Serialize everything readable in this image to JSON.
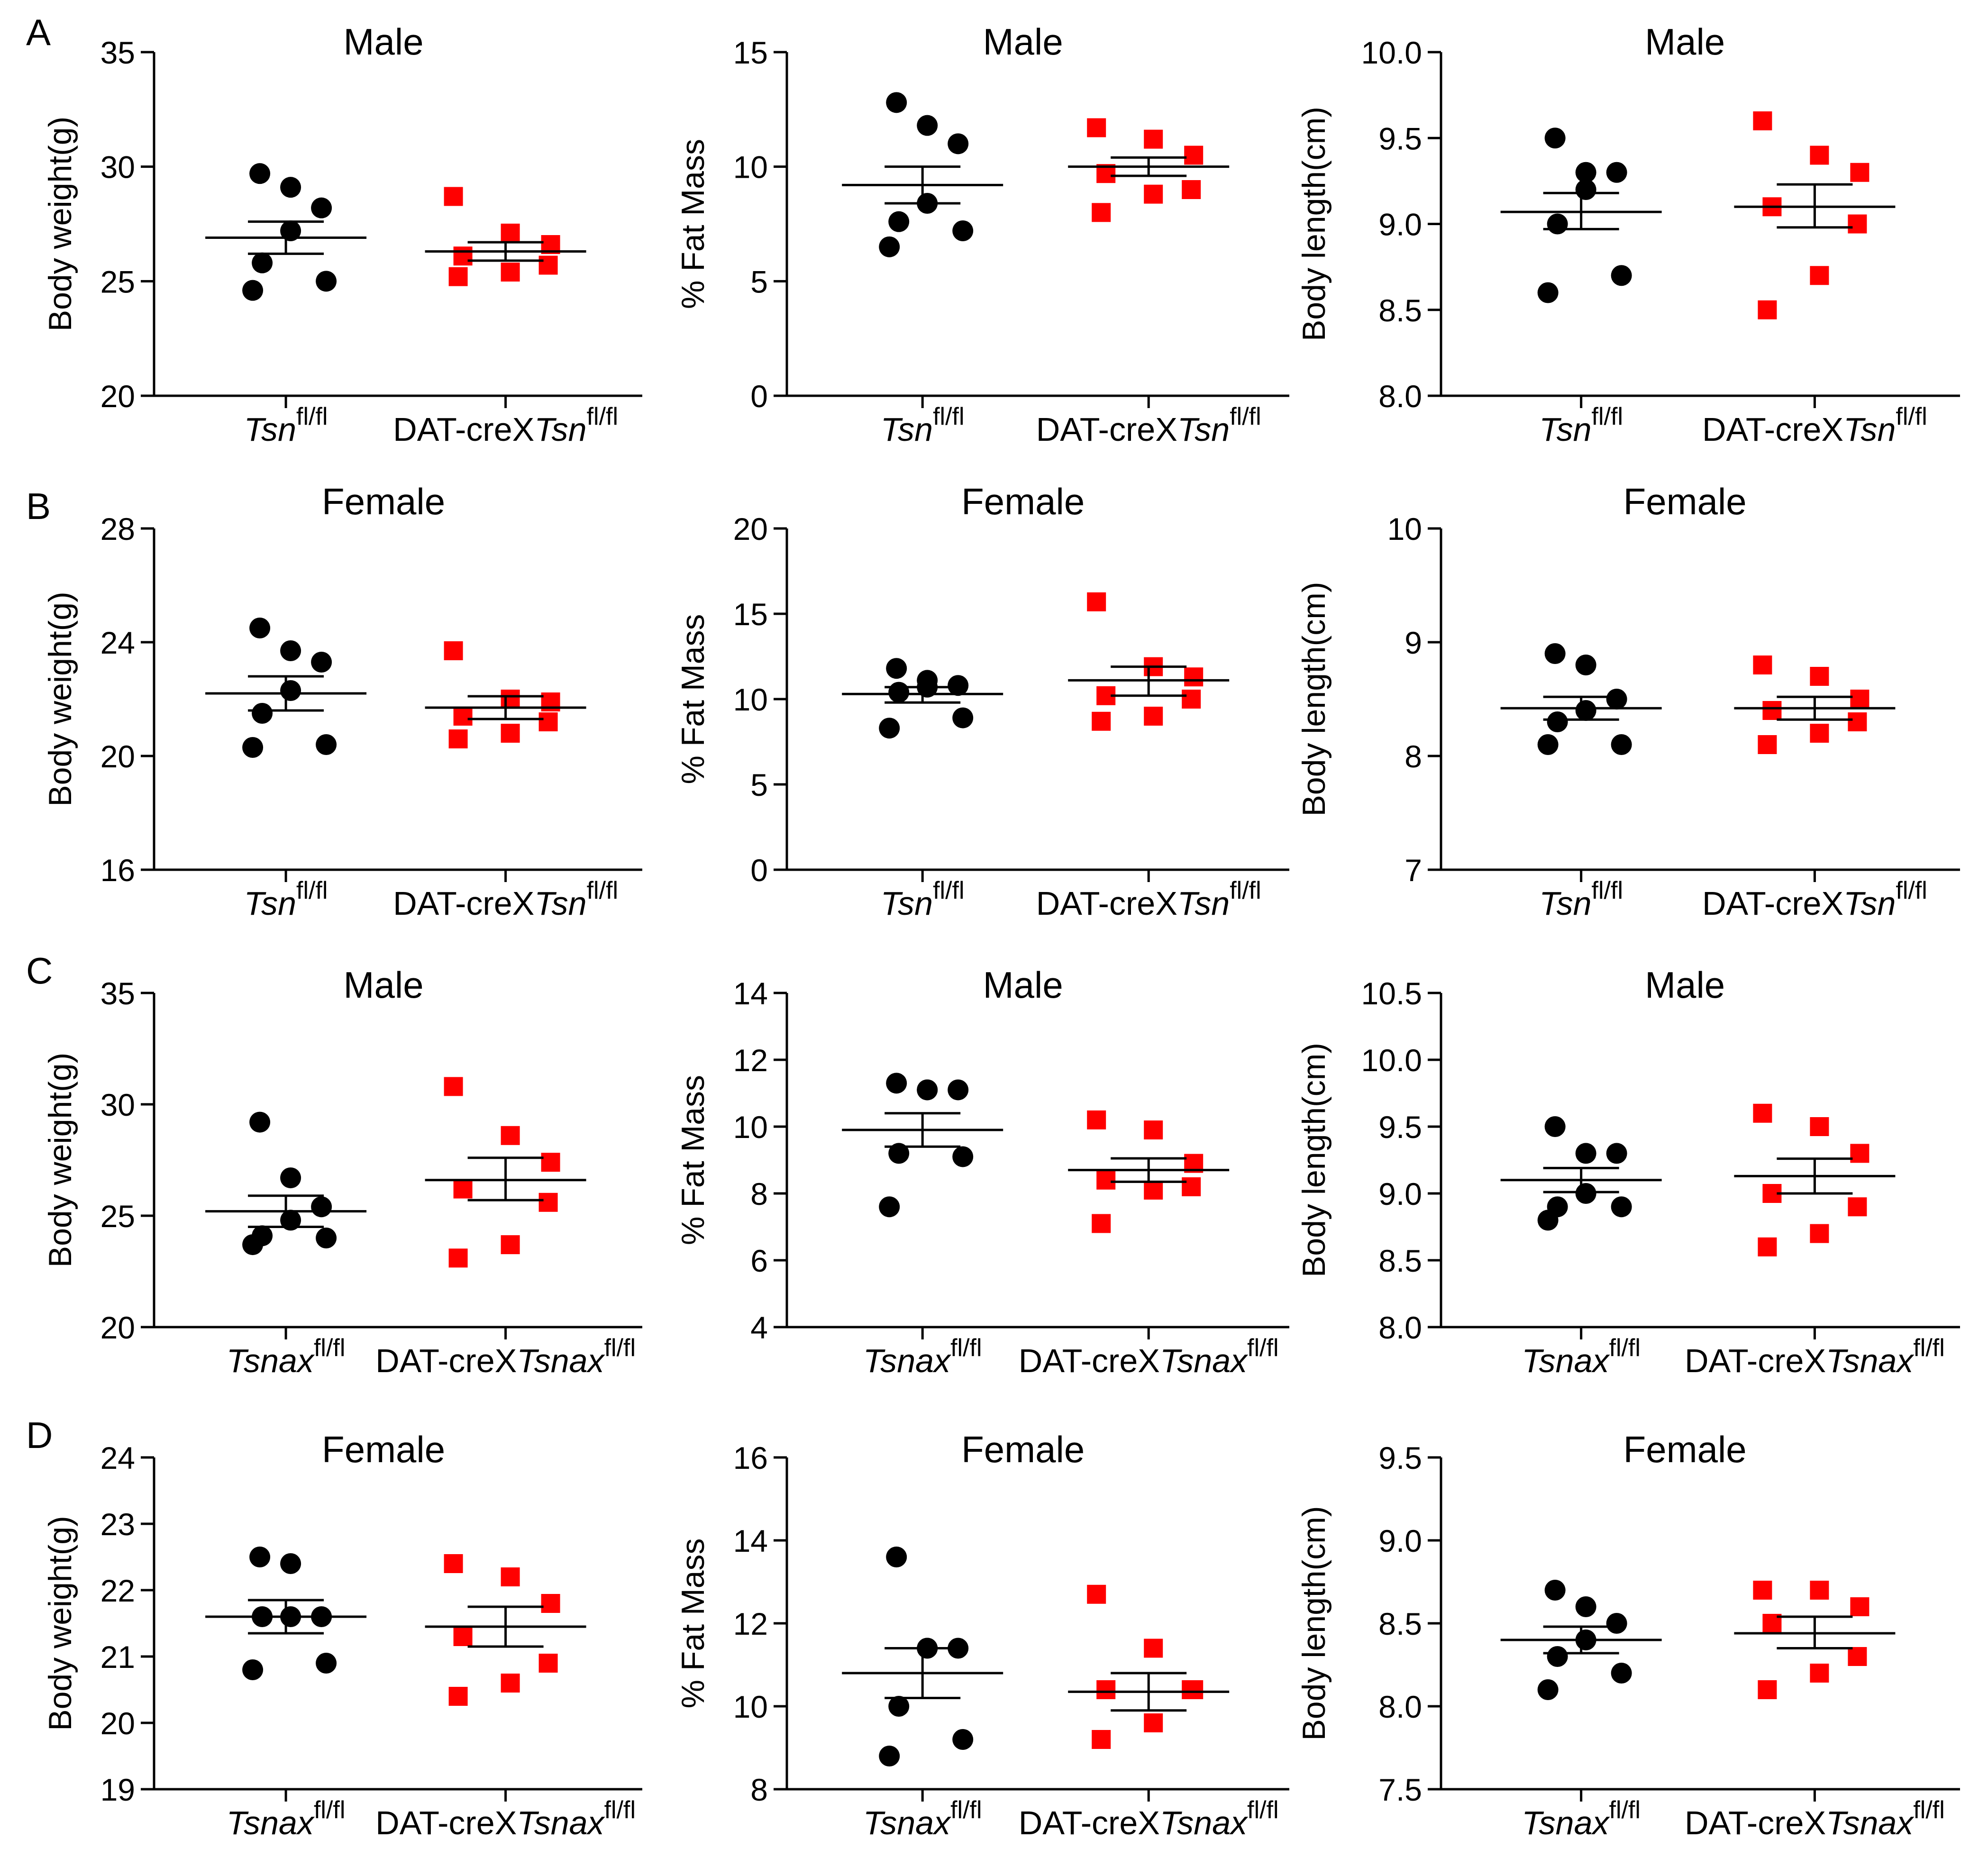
{
  "figure": {
    "colors": {
      "wt": "#000000",
      "ko": "#ff0000",
      "axis": "#000000"
    },
    "rows": [
      {
        "label": "A",
        "sex": "Male",
        "gene": "Tsn",
        "ko_prefix": "DAT-creX",
        "sup": "fl/fl"
      },
      {
        "label": "B",
        "sex": "Female",
        "gene": "Tsn",
        "ko_prefix": "DAT-creX",
        "sup": "fl/fl"
      },
      {
        "label": "C",
        "sex": "Male",
        "gene": "Tsnax",
        "ko_prefix": "DAT-creX",
        "sup": "fl/fl"
      },
      {
        "label": "D",
        "sex": "Female",
        "gene": "Tsnax",
        "ko_prefix": "DAT-creX",
        "sup": "fl/fl"
      }
    ]
  },
  "chart_data": [
    {
      "type": "scatter",
      "row": 0,
      "col": 0,
      "title": "Male",
      "ylabel": "Body weight(g)",
      "ylim": [
        20,
        35
      ],
      "yticks": [
        "20",
        "25",
        "30",
        "35"
      ],
      "categories": [
        "Tsn fl/fl",
        "DAT-creXTsn fl/fl"
      ],
      "series": [
        {
          "name": "Tsn fl/fl",
          "marker": "circle",
          "values": [
            29.7,
            29.1,
            28.2,
            27.2,
            25.8,
            25.0,
            24.6
          ],
          "mean": 26.9,
          "sem_low": 26.2,
          "sem_high": 27.6
        },
        {
          "name": "DAT-creXTsn fl/fl",
          "marker": "square",
          "values": [
            28.7,
            27.1,
            26.6,
            26.1,
            25.7,
            25.4,
            25.2
          ],
          "mean": 26.3,
          "sem_low": 25.9,
          "sem_high": 26.7
        }
      ]
    },
    {
      "type": "scatter",
      "row": 0,
      "col": 1,
      "title": "Male",
      "ylabel": "% Fat Mass",
      "ylim": [
        0,
        15
      ],
      "yticks": [
        "0",
        "5",
        "10",
        "15"
      ],
      "categories": [
        "Tsn fl/fl",
        "DAT-creXTsn fl/fl"
      ],
      "series": [
        {
          "name": "Tsn fl/fl",
          "marker": "circle",
          "values": [
            12.8,
            11.8,
            11.0,
            8.4,
            7.6,
            7.2,
            6.5
          ],
          "mean": 9.2,
          "sem_low": 8.4,
          "sem_high": 10.0
        },
        {
          "name": "DAT-creXTsn fl/fl",
          "marker": "square",
          "values": [
            11.7,
            11.2,
            10.5,
            9.7,
            9.0,
            8.8,
            8.0
          ],
          "mean": 10.0,
          "sem_low": 9.6,
          "sem_high": 10.4
        }
      ]
    },
    {
      "type": "scatter",
      "row": 0,
      "col": 2,
      "title": "Male",
      "ylabel": "Body length(cm)",
      "ylim": [
        8.0,
        10.0
      ],
      "yticks": [
        "8.0",
        "8.5",
        "9.0",
        "9.5",
        "10.0"
      ],
      "categories": [
        "Tsn fl/fl",
        "DAT-creXTsn fl/fl"
      ],
      "series": [
        {
          "name": "Tsn fl/fl",
          "marker": "circle",
          "values": [
            9.5,
            9.3,
            9.3,
            9.2,
            9.0,
            8.7,
            8.6
          ],
          "mean": 9.07,
          "sem_low": 8.97,
          "sem_high": 9.18
        },
        {
          "name": "DAT-creXTsn fl/fl",
          "marker": "square",
          "values": [
            9.6,
            9.4,
            9.3,
            9.1,
            9.0,
            8.7,
            8.5
          ],
          "mean": 9.1,
          "sem_low": 8.98,
          "sem_high": 9.23
        }
      ]
    },
    {
      "type": "scatter",
      "row": 1,
      "col": 0,
      "title": "Female",
      "ylabel": "Body weight(g)",
      "ylim": [
        16,
        28
      ],
      "yticks": [
        "16",
        "20",
        "24",
        "28"
      ],
      "categories": [
        "Tsn fl/fl",
        "DAT-creXTsn fl/fl"
      ],
      "series": [
        {
          "name": "Tsn fl/fl",
          "marker": "circle",
          "values": [
            24.5,
            23.7,
            23.3,
            22.3,
            21.5,
            20.4,
            20.3
          ],
          "mean": 22.2,
          "sem_low": 21.6,
          "sem_high": 22.8
        },
        {
          "name": "DAT-creXTsn fl/fl",
          "marker": "square",
          "values": [
            23.7,
            22.0,
            21.9,
            21.4,
            21.2,
            20.8,
            20.6
          ],
          "mean": 21.7,
          "sem_low": 21.3,
          "sem_high": 22.1
        }
      ]
    },
    {
      "type": "scatter",
      "row": 1,
      "col": 1,
      "title": "Female",
      "ylabel": "% Fat Mass",
      "ylim": [
        0,
        20
      ],
      "yticks": [
        "0",
        "5",
        "10",
        "15",
        "20"
      ],
      "categories": [
        "Tsn fl/fl",
        "DAT-creXTsn fl/fl"
      ],
      "series": [
        {
          "name": "Tsn fl/fl",
          "marker": "circle",
          "values": [
            11.8,
            11.1,
            10.8,
            10.7,
            10.4,
            8.9,
            8.3
          ],
          "mean": 10.3,
          "sem_low": 9.8,
          "sem_high": 10.7
        },
        {
          "name": "DAT-creXTsn fl/fl",
          "marker": "square",
          "values": [
            15.7,
            11.9,
            11.3,
            10.2,
            10.0,
            9.0,
            8.7
          ],
          "mean": 11.1,
          "sem_low": 10.2,
          "sem_high": 11.9
        }
      ]
    },
    {
      "type": "scatter",
      "row": 1,
      "col": 2,
      "title": "Female",
      "ylabel": "Body length(cm)",
      "ylim": [
        7,
        10
      ],
      "yticks": [
        "7",
        "8",
        "9",
        "10"
      ],
      "categories": [
        "Tsn fl/fl",
        "DAT-creXTsn fl/fl"
      ],
      "series": [
        {
          "name": "Tsn fl/fl",
          "marker": "circle",
          "values": [
            8.9,
            8.8,
            8.5,
            8.4,
            8.3,
            8.1,
            8.1
          ],
          "mean": 8.42,
          "sem_low": 8.32,
          "sem_high": 8.52
        },
        {
          "name": "DAT-creXTsn fl/fl",
          "marker": "square",
          "values": [
            8.8,
            8.7,
            8.5,
            8.4,
            8.3,
            8.2,
            8.1
          ],
          "mean": 8.42,
          "sem_low": 8.32,
          "sem_high": 8.52
        }
      ]
    },
    {
      "type": "scatter",
      "row": 2,
      "col": 0,
      "title": "Male",
      "ylabel": "Body weight(g)",
      "ylim": [
        20,
        35
      ],
      "yticks": [
        "20",
        "25",
        "30",
        "35"
      ],
      "categories": [
        "Tsnax fl/fl",
        "DAT-creXTsnax fl/fl"
      ],
      "series": [
        {
          "name": "Tsnax fl/fl",
          "marker": "circle",
          "values": [
            29.2,
            26.7,
            25.4,
            24.8,
            24.1,
            24.0,
            23.7
          ],
          "mean": 25.2,
          "sem_low": 24.5,
          "sem_high": 25.9
        },
        {
          "name": "DAT-creXTsnax fl/fl",
          "marker": "square",
          "values": [
            30.8,
            28.6,
            27.4,
            26.2,
            25.6,
            23.7,
            23.1
          ],
          "mean": 26.6,
          "sem_low": 25.7,
          "sem_high": 27.6
        }
      ]
    },
    {
      "type": "scatter",
      "row": 2,
      "col": 1,
      "title": "Male",
      "ylabel": "% Fat Mass",
      "ylim": [
        4,
        14
      ],
      "yticks": [
        "4",
        "6",
        "8",
        "10",
        "12",
        "14"
      ],
      "categories": [
        "Tsnax fl/fl",
        "DAT-creXTsnax fl/fl"
      ],
      "series": [
        {
          "name": "Tsnax fl/fl",
          "marker": "circle",
          "values": [
            11.3,
            11.1,
            11.1,
            11.1,
            9.2,
            9.1,
            7.6
          ],
          "mean": 9.9,
          "sem_low": 9.4,
          "sem_high": 10.4
        },
        {
          "name": "DAT-creXTsnax fl/fl",
          "marker": "square",
          "values": [
            10.2,
            9.9,
            8.9,
            8.4,
            8.2,
            8.1,
            7.1
          ],
          "mean": 8.7,
          "sem_low": 8.35,
          "sem_high": 9.05
        }
      ]
    },
    {
      "type": "scatter",
      "row": 2,
      "col": 2,
      "title": "Male",
      "ylabel": "Body length(cm)",
      "ylim": [
        8.0,
        10.5
      ],
      "yticks": [
        "8.0",
        "8.5",
        "9.0",
        "9.5",
        "10.0",
        "10.5"
      ],
      "categories": [
        "Tsnax fl/fl",
        "DAT-creXTsnax fl/fl"
      ],
      "series": [
        {
          "name": "Tsnax fl/fl",
          "marker": "circle",
          "values": [
            9.5,
            9.3,
            9.3,
            9.0,
            8.9,
            8.9,
            8.8
          ],
          "mean": 9.1,
          "sem_low": 9.01,
          "sem_high": 9.19
        },
        {
          "name": "DAT-creXTsnax fl/fl",
          "marker": "square",
          "values": [
            9.6,
            9.5,
            9.3,
            9.0,
            8.9,
            8.7,
            8.6
          ],
          "mean": 9.13,
          "sem_low": 9.0,
          "sem_high": 9.26
        }
      ]
    },
    {
      "type": "scatter",
      "row": 3,
      "col": 0,
      "title": "Female",
      "ylabel": "Body weight(g)",
      "ylim": [
        19,
        24
      ],
      "yticks": [
        "19",
        "20",
        "21",
        "22",
        "23",
        "24"
      ],
      "categories": [
        "Tsnax fl/fl",
        "DAT-creXTsnax fl/fl"
      ],
      "series": [
        {
          "name": "Tsnax fl/fl",
          "marker": "circle",
          "values": [
            22.5,
            22.4,
            21.6,
            21.6,
            21.6,
            20.9,
            20.8
          ],
          "mean": 21.6,
          "sem_low": 21.35,
          "sem_high": 21.85
        },
        {
          "name": "DAT-creXTsnax fl/fl",
          "marker": "square",
          "values": [
            22.4,
            22.2,
            21.8,
            21.3,
            20.9,
            20.6,
            20.4
          ],
          "mean": 21.45,
          "sem_low": 21.15,
          "sem_high": 21.75
        }
      ]
    },
    {
      "type": "scatter",
      "row": 3,
      "col": 1,
      "title": "Female",
      "ylabel": "% Fat Mass",
      "ylim": [
        8,
        16
      ],
      "yticks": [
        "8",
        "10",
        "12",
        "14",
        "16"
      ],
      "categories": [
        "Tsnax fl/fl",
        "DAT-creXTsnax fl/fl"
      ],
      "series": [
        {
          "name": "Tsnax fl/fl",
          "marker": "circle",
          "values": [
            13.6,
            11.4,
            11.4,
            11.4,
            10.0,
            9.2,
            8.8
          ],
          "mean": 10.8,
          "sem_low": 10.2,
          "sem_high": 11.4
        },
        {
          "name": "DAT-creXTsnax fl/fl",
          "marker": "square",
          "values": [
            12.7,
            11.4,
            10.4,
            10.4,
            10.4,
            9.6,
            9.2
          ],
          "mean": 10.35,
          "sem_low": 9.9,
          "sem_high": 10.8
        }
      ]
    },
    {
      "type": "scatter",
      "row": 3,
      "col": 2,
      "title": "Female",
      "ylabel": "Body length(cm)",
      "ylim": [
        7.5,
        9.5
      ],
      "yticks": [
        "7.5",
        "8.0",
        "8.5",
        "9.0",
        "9.5"
      ],
      "categories": [
        "Tsnax fl/fl",
        "DAT-creXTsnax fl/fl"
      ],
      "series": [
        {
          "name": "Tsnax fl/fl",
          "marker": "circle",
          "values": [
            8.7,
            8.6,
            8.5,
            8.4,
            8.3,
            8.2,
            8.1
          ],
          "mean": 8.4,
          "sem_low": 8.32,
          "sem_high": 8.48
        },
        {
          "name": "DAT-creXTsnax fl/fl",
          "marker": "square",
          "values": [
            8.7,
            8.7,
            8.6,
            8.5,
            8.3,
            8.2,
            8.1
          ],
          "mean": 8.44,
          "sem_low": 8.35,
          "sem_high": 8.54
        }
      ]
    }
  ]
}
